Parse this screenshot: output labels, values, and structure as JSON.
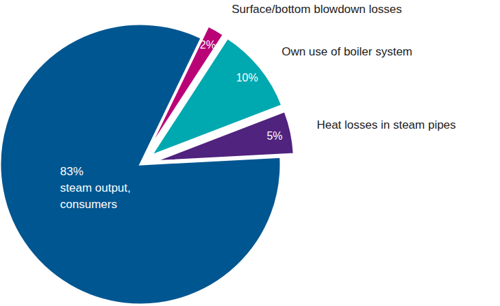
{
  "chart_data": {
    "type": "pie",
    "categories": [
      "Heat losses in steam pipes",
      "Own use of boiler system",
      "Surface/bottom blowdown losses",
      "steam output, consumers"
    ],
    "values": [
      5,
      10,
      2,
      83
    ],
    "colors": [
      "#50237f",
      "#00a8b0",
      "#b90276",
      "#005691"
    ],
    "data_labels": true,
    "value_labels": [
      "5%",
      "10%",
      "2%",
      "83%"
    ]
  }
}
